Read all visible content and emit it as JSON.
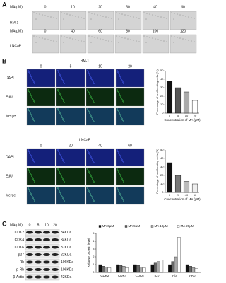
{
  "panel_a": {
    "label": "A",
    "dose_label": "MA(μM)",
    "rows": [
      {
        "name": "RM-1",
        "doses": [
          0,
          10,
          20,
          30,
          40,
          50
        ]
      },
      {
        "name": "LNCaP",
        "doses": [
          0,
          40,
          60,
          80,
          100,
          120
        ]
      }
    ]
  },
  "panel_b": {
    "label": "B",
    "groups": [
      {
        "cell_line": "RM-1",
        "doses": [
          0,
          5,
          10,
          20
        ],
        "stains": [
          "DAPI",
          "EdU",
          "Merge"
        ]
      },
      {
        "cell_line": "LNCaP",
        "doses": [
          0,
          20,
          40,
          60
        ],
        "stains": [
          "DAPI",
          "EdU",
          "Merge"
        ]
      }
    ]
  },
  "panel_c": {
    "label": "C",
    "dose_label": "MA(μM)",
    "doses": [
      0,
      5,
      10,
      20
    ],
    "proteins": [
      {
        "name": "CDK2",
        "size": "34KDa"
      },
      {
        "name": "CDK4",
        "size": "34KDa"
      },
      {
        "name": "CDK6",
        "size": "37KDa"
      },
      {
        "name": "p27",
        "size": "22KDa"
      },
      {
        "name": "Rb",
        "size": "106KDa"
      },
      {
        "name": "p-Rb",
        "size": "106KDa"
      },
      {
        "name": "β-Actin",
        "size": "42KDa"
      }
    ]
  },
  "chart_data": [
    {
      "type": "bar",
      "ylabel": "Percentage of proliferating cells (%)",
      "xlabel": "Concentration of MA (μM)",
      "categories": [
        0,
        5,
        10,
        20
      ],
      "values": [
        38,
        30,
        25,
        15
      ],
      "colors": [
        "#111111",
        "#555555",
        "#aaaaaa",
        "#ffffff"
      ],
      "ylim": [
        0,
        50
      ],
      "yticks": [
        0,
        10,
        20,
        30,
        40,
        50
      ]
    },
    {
      "type": "bar",
      "ylabel": "Percentage of proliferating cells (%)",
      "xlabel": "Concentration of MA (μM)",
      "categories": [
        0,
        20,
        40,
        60
      ],
      "values": [
        35,
        20,
        13,
        10
      ],
      "colors": [
        "#111111",
        "#777777",
        "#bbbbbb",
        "#eeeeee"
      ],
      "ylim": [
        0,
        50
      ],
      "yticks": [
        0,
        10,
        20,
        30,
        40,
        50
      ]
    },
    {
      "type": "grouped_bar",
      "ylabel": "Relative protein level",
      "categories": [
        "CDK2",
        "CDK4",
        "CDK6",
        "p27",
        "Rb",
        "p-Rb"
      ],
      "series": [
        {
          "name": "MA 0μM",
          "color": "#111111",
          "values": [
            1,
            1,
            1,
            1,
            1,
            1
          ]
        },
        {
          "name": "MA 5μM",
          "color": "#666666",
          "values": [
            0.8,
            0.9,
            0.9,
            1.2,
            1.4,
            0.8
          ]
        },
        {
          "name": "MA 10μM",
          "color": "#aaaaaa",
          "values": [
            0.7,
            0.8,
            0.7,
            1.4,
            2,
            0.6
          ]
        },
        {
          "name": "MA 20μM",
          "color": "#ffffff",
          "values": [
            0.6,
            0.6,
            0.6,
            1.6,
            4.5,
            0.5
          ]
        }
      ],
      "ylim": [
        0,
        5
      ],
      "yticks": [
        0,
        1,
        2,
        3,
        4,
        5
      ],
      "legend": "top"
    }
  ]
}
